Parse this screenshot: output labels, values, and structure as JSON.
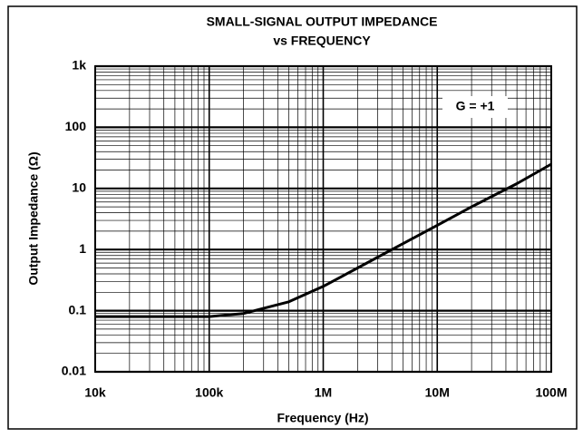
{
  "chart_data": {
    "type": "line",
    "title": [
      "SMALL-SIGNAL OUTPUT IMPEDANCE",
      "vs FREQUENCY"
    ],
    "xlabel": "Frequency (Hz)",
    "ylabel": "Output Impedance (Ω)",
    "annotation": "G = +1",
    "xscale": "log",
    "yscale": "log",
    "grid": true,
    "minor_grid": true,
    "xlim": [
      10000,
      100000000
    ],
    "ylim": [
      0.01,
      1000
    ],
    "xticks": [
      {
        "value": 10000,
        "label": "10k"
      },
      {
        "value": 100000,
        "label": "100k"
      },
      {
        "value": 1000000,
        "label": "1M"
      },
      {
        "value": 10000000,
        "label": "10M"
      },
      {
        "value": 100000000,
        "label": "100M"
      }
    ],
    "yticks": [
      0.01,
      0.1,
      1,
      10,
      100,
      {
        "value": 1000,
        "label": "1k"
      }
    ],
    "series": [
      {
        "color": "#000000",
        "x": [
          10000,
          100000,
          200000,
          500000,
          1000000,
          2000000,
          5000000,
          10000000,
          20000000,
          50000000,
          100000000
        ],
        "values": [
          0.08,
          0.08,
          0.09,
          0.14,
          0.25,
          0.5,
          1.25,
          2.5,
          5,
          12,
          25
        ]
      }
    ]
  }
}
